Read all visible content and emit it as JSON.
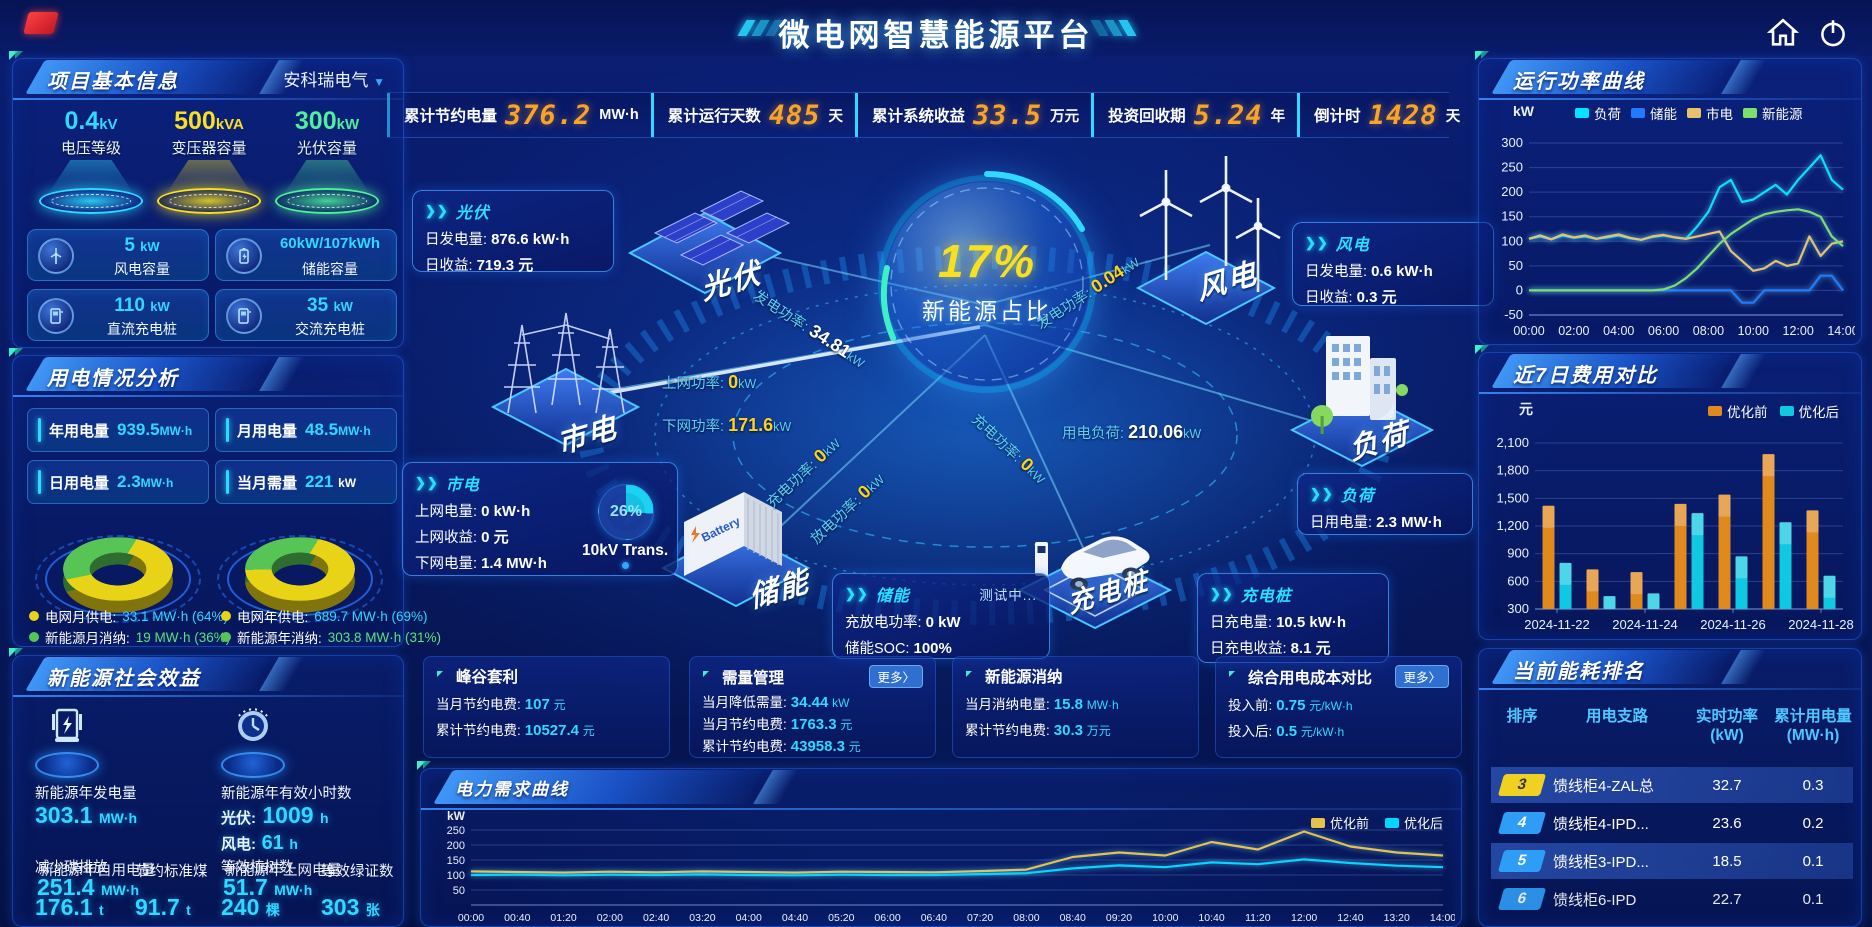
{
  "header": {
    "title": "微电网智慧能源平台"
  },
  "top_stats": [
    {
      "label": "累计节约电量",
      "value": "376.2",
      "unit": "MW·h"
    },
    {
      "label": "累计运行天数",
      "value": "485",
      "unit": "天"
    },
    {
      "label": "累计系统收益",
      "value": "33.5",
      "unit": "万元"
    },
    {
      "label": "投资回收期",
      "value": "5.24",
      "unit": "年"
    },
    {
      "label": "倒计时",
      "value": "1428",
      "unit": "天"
    }
  ],
  "project_info": {
    "title": "项目基本信息",
    "company": "安科瑞电气",
    "podiums": [
      {
        "value": "0.4",
        "unit": "kV",
        "label": "电压等级",
        "color": "#2fd9ff"
      },
      {
        "value": "500",
        "unit": "kVA",
        "label": "变压器容量",
        "color": "#f7e01f"
      },
      {
        "value": "300",
        "unit": "kW",
        "label": "光伏容量",
        "color": "#4ef09a"
      }
    ],
    "cards": [
      {
        "value": "5",
        "unit": "kW",
        "label": "风电容量"
      },
      {
        "value": "60kW/107kWh",
        "unit": "",
        "label": "储能容量"
      },
      {
        "value": "110",
        "unit": "kW",
        "label": "直流充电桩"
      },
      {
        "value": "35",
        "unit": "kW",
        "label": "交流充电桩"
      }
    ]
  },
  "usage_analysis": {
    "title": "用电情况分析",
    "stats": [
      {
        "label": "年用电量",
        "value": "939.5",
        "unit": "MW·h"
      },
      {
        "label": "月用电量",
        "value": "48.5",
        "unit": "MW·h"
      },
      {
        "label": "日用电量",
        "value": "2.3",
        "unit": "MW·h"
      },
      {
        "label": "当月需量",
        "value": "221",
        "unit": "kW"
      }
    ],
    "donuts": [
      {
        "grid_pct": 64,
        "grid_label": "电网月供电:",
        "grid_value": "33.1 MW·h (64%)",
        "new_label": "新能源月消纳:",
        "new_value": "19 MW·h (36%)"
      },
      {
        "grid_pct": 69,
        "grid_label": "电网年供电:",
        "grid_value": "689.7 MW·h (69%)",
        "new_label": "新能源年消纳:",
        "new_value": "303.8 MW·h (31%)"
      }
    ],
    "donut_colors": {
      "grid": "#e8d316",
      "new": "#56c556"
    }
  },
  "social_benefit": {
    "title": "新能源社会效益",
    "gen": {
      "label": "新能源年发电量",
      "value": "303.1",
      "unit": "MW·h"
    },
    "hours": {
      "label": "新能源年有效小时数",
      "pv_label": "光伏:",
      "pv_value": "1009",
      "pv_unit": "h",
      "wind_label": "风电:",
      "wind_value": "61",
      "wind_unit": "h"
    },
    "self_use": {
      "label": "新能源年自用电量",
      "value": "251.4",
      "unit": "MW·h"
    },
    "to_grid": {
      "label": "新能源年上网电量",
      "value": "51.7",
      "unit": "MW·h"
    },
    "co2": {
      "label": "减少碳排放",
      "value": "176.1",
      "unit": "t"
    },
    "coal": {
      "label": "节约标准煤",
      "value": "91.7",
      "unit": "t"
    },
    "trees": {
      "label": "等效植树数",
      "value": "240",
      "unit": "棵"
    },
    "certs": {
      "label": "等效绿证数",
      "value": "303",
      "unit": "张"
    }
  },
  "diagram": {
    "center_pct": "17%",
    "center_label": "新能源占比",
    "nodes": {
      "pv": "光伏",
      "wind": "风电",
      "grid": "市电",
      "load": "负荷",
      "storage": "储能",
      "charger": "充电桩"
    },
    "battery_text": "Battery",
    "pv_box": {
      "title": "光伏",
      "r1k": "日发电量:",
      "r1v": "876.6 kW·h",
      "r2k": "日收益:",
      "r2v": "719.3 元"
    },
    "wind_box": {
      "title": "风电",
      "r1k": "日发电量:",
      "r1v": "0.6 kW·h",
      "r2k": "日收益:",
      "r2v": "0.3 元"
    },
    "grid_box": {
      "title": "市电",
      "r1k": "上网电量:",
      "r1v": "0 kW·h",
      "r2k": "上网收益:",
      "r2v": "0 元",
      "r3k": "下网电量:",
      "r3v": "1.4 MW·h",
      "gauge_pct": "26%",
      "gauge_label": "10kV Trans."
    },
    "load_box": {
      "title": "负荷",
      "r1k": "日用电量:",
      "r1v": "2.3 MW·h"
    },
    "storage_box": {
      "title": "储能",
      "status": "测试中...",
      "r1k": "充放电功率:",
      "r1v": "0 kW",
      "r2k": "储能SOC:",
      "r2v": "100%"
    },
    "charger_box": {
      "title": "充电桩",
      "r1k": "日充电量:",
      "r1v": "10.5 kW·h",
      "r2k": "日充电收益:",
      "r2v": "8.1 元"
    },
    "flows": {
      "pv_power": {
        "k": "发电功率:",
        "v": "34.81",
        "u": "kW"
      },
      "wind_power": {
        "k": "发电功率:",
        "v": "0.04",
        "u": "kW"
      },
      "up_power": {
        "k": "上网功率:",
        "v": "0",
        "u": "kW"
      },
      "down_power": {
        "k": "下网功率:",
        "v": "171.6",
        "u": "kW"
      },
      "load_power": {
        "k": "用电负荷:",
        "v": "210.06",
        "u": "kW"
      },
      "charge_power": {
        "k": "充电功率:",
        "v": "0",
        "u": "kW"
      },
      "discharge_power": {
        "k": "放电功率:",
        "v": "0",
        "u": "kW"
      },
      "pile_power": {
        "k": "充电功率:",
        "v": "0",
        "u": "kW"
      }
    }
  },
  "bottom_cards": [
    {
      "title": "峰谷套利",
      "more": "",
      "rows": [
        {
          "k": "当月节约电费:",
          "v": "107",
          "u": "元"
        },
        {
          "k": "累计节约电费:",
          "v": "10527.4",
          "u": "元"
        }
      ]
    },
    {
      "title": "需量管理",
      "more": "更多〉",
      "rows": [
        {
          "k": "当月降低需量:",
          "v": "34.44",
          "u": "kW"
        },
        {
          "k": "当月节约电费:",
          "v": "1763.3",
          "u": "元"
        },
        {
          "k": "累计节约电费:",
          "v": "43958.3",
          "u": "元"
        }
      ]
    },
    {
      "title": "新能源消纳",
      "more": "",
      "rows": [
        {
          "k": "当月消纳电量:",
          "v": "15.8",
          "u": "MW·h"
        },
        {
          "k": "累计节约电费:",
          "v": "30.3",
          "u": "万元"
        }
      ]
    },
    {
      "title": "综合用电成本对比",
      "more": "更多〉",
      "rows": [
        {
          "k": "投入前:",
          "v": "0.75",
          "u": "元/kW·h"
        },
        {
          "k": "投入后:",
          "v": "0.5",
          "u": "元/kW·h"
        }
      ]
    }
  ],
  "right": {
    "power_curve_title": "运行功率曲线",
    "cost_compare_title": "近7日费用对比",
    "ranking": {
      "title": "当前能耗排名",
      "headers": [
        {
          "t": "排序",
          "s": ""
        },
        {
          "t": "用电支路",
          "s": ""
        },
        {
          "t": "实时功率",
          "s": "(kW)"
        },
        {
          "t": "累计用电量",
          "s": "(MW·h)"
        }
      ],
      "rows": [
        {
          "rank": "3",
          "branch": "馈线柜4-ZAL总",
          "power": "32.7",
          "energy": "0.3"
        },
        {
          "rank": "4",
          "branch": "馈线柜4-IPD...",
          "power": "23.6",
          "energy": "0.2"
        },
        {
          "rank": "5",
          "branch": "馈线柜3-IPD...",
          "power": "18.5",
          "energy": "0.1"
        },
        {
          "rank": "6",
          "branch": "馈线柜6-IPD",
          "power": "22.7",
          "energy": "0.1"
        }
      ]
    }
  },
  "demand_panel": {
    "title": "电力需求曲线"
  },
  "chart_data": [
    {
      "id": "power_curve",
      "type": "line",
      "title": "运行功率曲线",
      "ylabel": "kW",
      "ylim": [
        -50,
        300
      ],
      "yticks": [
        -50,
        0,
        50,
        100,
        150,
        200,
        250,
        300
      ],
      "x_labels": [
        "00:00",
        "02:00",
        "04:00",
        "06:00",
        "08:00",
        "10:00",
        "12:00",
        "14:00"
      ],
      "legend_position": "top",
      "series": [
        {
          "name": "负荷",
          "color": "#00e4ff",
          "values": [
            105,
            110,
            104,
            112,
            107,
            110,
            105,
            108,
            112,
            106,
            103,
            109,
            112,
            108,
            105,
            130,
            160,
            210,
            225,
            180,
            185,
            200,
            215,
            195,
            225,
            250,
            275,
            225,
            205
          ]
        },
        {
          "name": "储能",
          "color": "#1f7bff",
          "values": [
            0,
            0,
            0,
            0,
            0,
            0,
            0,
            0,
            0,
            0,
            0,
            0,
            0,
            0,
            0,
            0,
            0,
            0,
            0,
            -25,
            -25,
            0,
            0,
            0,
            0,
            0,
            30,
            30,
            0
          ]
        },
        {
          "name": "市电",
          "color": "#e6c26a",
          "values": [
            105,
            112,
            104,
            114,
            108,
            112,
            105,
            110,
            114,
            107,
            103,
            110,
            113,
            108,
            105,
            110,
            115,
            120,
            80,
            60,
            40,
            45,
            60,
            50,
            55,
            110,
            70,
            95,
            100
          ]
        },
        {
          "name": "新能源",
          "color": "#7ddf6a",
          "values": [
            0,
            0,
            0,
            0,
            0,
            0,
            0,
            0,
            0,
            0,
            0,
            0,
            2,
            10,
            25,
            45,
            70,
            95,
            115,
            130,
            145,
            155,
            160,
            163,
            165,
            160,
            150,
            110,
            90
          ]
        }
      ]
    },
    {
      "id": "cost_compare",
      "type": "bar",
      "title": "近7日费用对比",
      "ylabel": "元",
      "ylim": [
        300,
        2100
      ],
      "yticks": [
        300,
        600,
        900,
        1200,
        1500,
        1800,
        2100
      ],
      "categories": [
        "2024-11-22",
        "2024-11-23",
        "2024-11-24",
        "2024-11-25",
        "2024-11-26",
        "2024-11-27",
        "2024-11-28"
      ],
      "x_tick_labels": [
        "2024-11-22",
        "2024-11-24",
        "2024-11-26",
        "2024-11-28"
      ],
      "legend_position": "top-right",
      "series": [
        {
          "name": "优化前",
          "color": "#e08a1e",
          "values": [
            1420,
            730,
            700,
            1440,
            1540,
            1980,
            1370
          ]
        },
        {
          "name": "优化后",
          "color": "#10c8e0",
          "values": [
            800,
            440,
            470,
            1340,
            870,
            1240,
            660
          ]
        }
      ]
    },
    {
      "id": "demand_curve",
      "type": "line",
      "title": "电力需求曲线",
      "ylabel": "kW",
      "ylim": [
        0,
        260
      ],
      "yticks": [
        50,
        100,
        150,
        200,
        250
      ],
      "x_labels": [
        "00:00",
        "00:40",
        "01:20",
        "02:00",
        "02:40",
        "03:20",
        "04:00",
        "04:40",
        "05:20",
        "06:00",
        "06:40",
        "07:20",
        "08:00",
        "08:40",
        "09:20",
        "10:00",
        "10:40",
        "11:20",
        "12:00",
        "12:40",
        "13:20",
        "14:00"
      ],
      "legend_position": "top-right",
      "series": [
        {
          "name": "优化前",
          "color": "#e6c24a",
          "values": [
            112,
            110,
            108,
            111,
            109,
            112,
            110,
            108,
            111,
            110,
            109,
            113,
            118,
            160,
            175,
            165,
            210,
            185,
            245,
            195,
            175,
            165
          ]
        },
        {
          "name": "优化后",
          "color": "#00d8ff",
          "values": [
            100,
            101,
            99,
            101,
            100,
            102,
            100,
            99,
            101,
            100,
            100,
            103,
            106,
            122,
            132,
            126,
            142,
            136,
            152,
            140,
            131,
            126
          ]
        }
      ]
    }
  ]
}
